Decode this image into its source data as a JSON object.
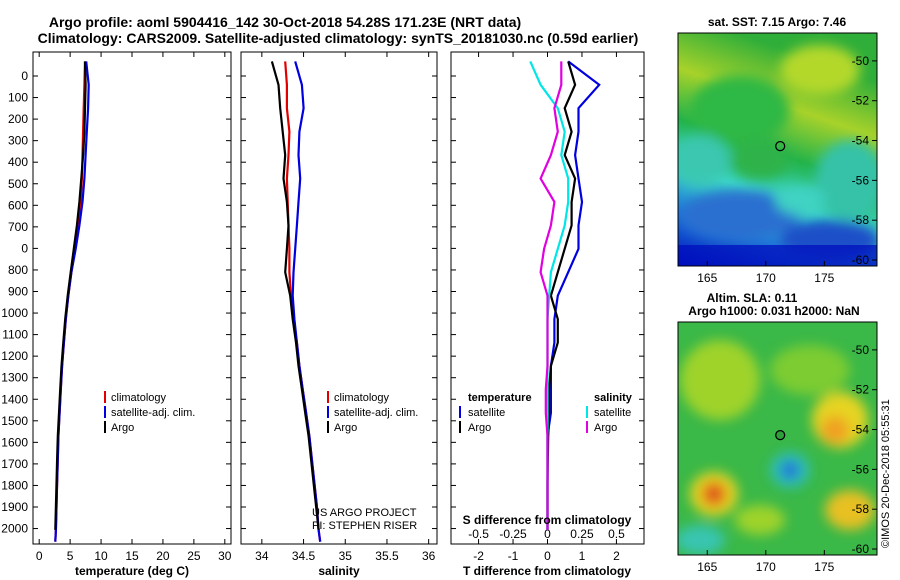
{
  "title_line1": "Argo profile: aoml 5904416_142 30-Oct-2018 54.28S 171.23E (NRT data)",
  "title_line2": "Climatology: CARS2009. Satellite-adjusted climatology: synTS_20181030.nc (0.59d earlier)",
  "colors": {
    "climatology": "#e00000",
    "satellite": "#0000e0",
    "argo": "#000000",
    "sat_salinity": "#00e6e6",
    "argo_salinity": "#e000e0"
  },
  "depth_ticks": [
    "0",
    "100",
    "200",
    "300",
    "400",
    "500",
    "600",
    "700",
    "0",
    "800",
    "900",
    "1000",
    "1100",
    "1200",
    "1300",
    "1400",
    "1500",
    "1600",
    "1700",
    "1800",
    "1900",
    "2000"
  ],
  "chart_data": [
    {
      "type": "line",
      "xlabel": "temperature (deg C)",
      "xlim": [
        -1,
        31
      ],
      "xticks": [
        "0",
        "5",
        "10",
        "15",
        "20",
        "25",
        "30"
      ],
      "ylim": [
        2060,
        -40
      ],
      "legend": [
        "climatology",
        "satellite-adj. clim.",
        "Argo"
      ],
      "series": [
        {
          "name": "climatology",
          "color": "red",
          "x": [
            7.4,
            7.3,
            7.2,
            7.1,
            7.0,
            6.9,
            6.7,
            6.3,
            5.8,
            5.2,
            4.7,
            4.3,
            4.0,
            3.7,
            3.5,
            3.3,
            3.1,
            3.0,
            2.9,
            2.8,
            2.7,
            2.6
          ],
          "y": [
            0,
            100,
            200,
            300,
            400,
            500,
            600,
            700,
            800,
            900,
            1000,
            1100,
            1200,
            1300,
            1400,
            1500,
            1600,
            1700,
            1800,
            1900,
            2000,
            2050
          ]
        },
        {
          "name": "satellite-adj. clim.",
          "color": "blue",
          "x": [
            7.6,
            8.0,
            7.9,
            7.7,
            7.5,
            7.3,
            7.0,
            6.5,
            5.9,
            5.2,
            4.7,
            4.3,
            4.0,
            3.7,
            3.5,
            3.3,
            3.1,
            3.0,
            2.9,
            2.8,
            2.7,
            2.6
          ],
          "y": [
            0,
            100,
            200,
            300,
            400,
            500,
            600,
            700,
            800,
            900,
            1000,
            1100,
            1200,
            1300,
            1400,
            1500,
            1600,
            1700,
            1800,
            1900,
            2000,
            2050
          ]
        },
        {
          "name": "Argo",
          "color": "black",
          "x": [
            7.4,
            7.5,
            7.4,
            7.3,
            7.1,
            6.8,
            6.5,
            6.1,
            5.6,
            5.1,
            4.6,
            4.2,
            3.9,
            3.6,
            3.4,
            3.2,
            3.0,
            2.9,
            2.8,
            2.7,
            2.6
          ],
          "y": [
            0,
            100,
            200,
            300,
            400,
            500,
            600,
            700,
            800,
            900,
            1000,
            1100,
            1200,
            1300,
            1400,
            1500,
            1600,
            1700,
            1800,
            1900,
            2000
          ]
        }
      ]
    },
    {
      "type": "line",
      "xlabel": "salinity",
      "xlim": [
        33.75,
        36.1
      ],
      "xticks": [
        "34",
        "34.5",
        "35",
        "35.5",
        "36"
      ],
      "ylim": [
        2060,
        -40
      ],
      "legend": [
        "climatology",
        "satellite-adj. clim.",
        "Argo"
      ],
      "credit": [
        "US ARGO PROJECT",
        "PI: STEPHEN RISER"
      ],
      "series": [
        {
          "name": "climatology",
          "color": "red",
          "x": [
            34.28,
            34.3,
            34.3,
            34.33,
            34.32,
            34.3,
            34.31,
            34.32,
            34.33,
            34.33,
            34.35,
            34.38,
            34.42,
            34.45,
            34.49,
            34.53,
            34.57,
            34.6,
            34.63,
            34.66,
            34.68,
            34.7
          ],
          "y": [
            0,
            100,
            200,
            300,
            400,
            500,
            600,
            700,
            800,
            900,
            1000,
            1100,
            1200,
            1300,
            1400,
            1500,
            1600,
            1700,
            1800,
            1900,
            2000,
            2050
          ]
        },
        {
          "name": "satellite-adj. clim.",
          "color": "blue",
          "x": [
            34.4,
            34.48,
            34.5,
            34.45,
            34.44,
            34.46,
            34.44,
            34.42,
            34.4,
            34.38,
            34.37,
            34.39,
            34.42,
            34.45,
            34.49,
            34.53,
            34.57,
            34.6,
            34.63,
            34.66,
            34.68,
            34.7
          ],
          "y": [
            0,
            100,
            200,
            300,
            400,
            500,
            600,
            700,
            800,
            900,
            1000,
            1100,
            1200,
            1300,
            1400,
            1500,
            1600,
            1700,
            1800,
            1900,
            2000,
            2050
          ]
        },
        {
          "name": "Argo",
          "color": "black",
          "x": [
            34.12,
            34.2,
            34.22,
            34.25,
            34.28,
            34.26,
            34.3,
            34.32,
            34.3,
            34.28,
            34.34,
            34.37,
            34.41,
            34.44,
            34.48,
            34.52,
            34.56,
            34.59,
            34.62,
            34.65,
            34.68
          ],
          "y": [
            0,
            100,
            200,
            300,
            400,
            500,
            600,
            700,
            800,
            900,
            1000,
            1100,
            1200,
            1300,
            1400,
            1500,
            1600,
            1700,
            1800,
            1900,
            2000
          ]
        }
      ]
    },
    {
      "type": "line",
      "xlabel": "T difference from climatology",
      "xlabel_top": "S difference from climatology",
      "xlim": [
        -2.8,
        2.8
      ],
      "xticks": [
        "-2",
        "-1",
        "0",
        "1",
        "2"
      ],
      "xticks_top": [
        "-0.5",
        "-0.25",
        "0",
        "0.25",
        "0.5"
      ],
      "ylim": [
        2060,
        -40
      ],
      "legend_left_title": "temperature",
      "legend_right_title": "salinity",
      "legend_left": [
        "satellite",
        "Argo"
      ],
      "legend_right": [
        "satellite",
        "Argo"
      ],
      "series": [
        {
          "name": "T satellite",
          "color": "blue",
          "x": [
            0.6,
            1.5,
            0.9,
            0.9,
            0.8,
            0.9,
            1.0,
            0.9,
            0.9,
            0.6,
            0.3,
            0.2,
            0.2,
            0.1,
            0.1,
            0.1,
            0.0,
            0.0,
            0.0,
            0.0,
            0.0
          ],
          "y": [
            0,
            100,
            200,
            300,
            400,
            500,
            600,
            700,
            800,
            900,
            1000,
            1100,
            1200,
            1300,
            1400,
            1500,
            1600,
            1700,
            1800,
            1900,
            2000
          ]
        },
        {
          "name": "T Argo",
          "color": "black",
          "x": [
            0.6,
            0.8,
            0.5,
            0.7,
            0.5,
            0.8,
            0.7,
            0.7,
            0.5,
            0.3,
            0.1,
            0.3,
            0.3,
            0.1,
            0.05,
            0.05,
            0.02,
            0.01,
            0.0,
            0.0,
            0.0
          ],
          "y": [
            0,
            100,
            200,
            300,
            400,
            500,
            600,
            700,
            800,
            900,
            1000,
            1100,
            1200,
            1300,
            1400,
            1500,
            1600,
            1700,
            1800,
            1900,
            2000
          ]
        },
        {
          "name": "S satellite",
          "color": "cyan",
          "x": [
            -0.5,
            -0.2,
            0.3,
            0.5,
            0.4,
            0.6,
            0.6,
            0.5,
            0.3,
            0.1,
            0.05,
            0.0,
            0.0,
            0.0,
            0.0,
            0.0,
            0.0,
            0.0,
            0.0,
            0.0,
            0.0
          ],
          "y": [
            0,
            100,
            200,
            300,
            400,
            500,
            600,
            700,
            800,
            900,
            1000,
            1100,
            1200,
            1300,
            1400,
            1500,
            1600,
            1700,
            1800,
            1900,
            2000
          ]
        },
        {
          "name": "S Argo",
          "color": "magenta",
          "x": [
            0.4,
            0.4,
            0.2,
            0.3,
            0.1,
            -0.2,
            0.2,
            0.1,
            -0.1,
            -0.2,
            0.0,
            0.0,
            0.0,
            0.0,
            -0.05,
            -0.05,
            0.0,
            0.0,
            0.0,
            0.0,
            0.0
          ],
          "y": [
            0,
            100,
            200,
            300,
            400,
            500,
            600,
            700,
            800,
            900,
            1000,
            1100,
            1200,
            1300,
            1400,
            1500,
            1600,
            1700,
            1800,
            1900,
            2000
          ]
        }
      ]
    },
    {
      "type": "heatmap",
      "title": "sat. SST: 7.15 Argo: 7.46",
      "xticks": [
        "165",
        "170",
        "175"
      ],
      "yticks": [
        "-50",
        "-52",
        "-54",
        "-56",
        "-58",
        "-60"
      ],
      "marker": {
        "lon": 171.23,
        "lat": -54.28
      }
    },
    {
      "type": "heatmap",
      "title_line1": "Altim. SLA: 0.11",
      "title_line2": "Argo h1000: 0.031 h2000: NaN",
      "xticks": [
        "165",
        "170",
        "175"
      ],
      "yticks": [
        "-50",
        "-52",
        "-54",
        "-56",
        "-58",
        "-60"
      ],
      "marker": {
        "lon": 171.23,
        "lat": -54.28
      }
    }
  ],
  "side_credit": "©IMOS 20-Dec-2018 05:55:31"
}
